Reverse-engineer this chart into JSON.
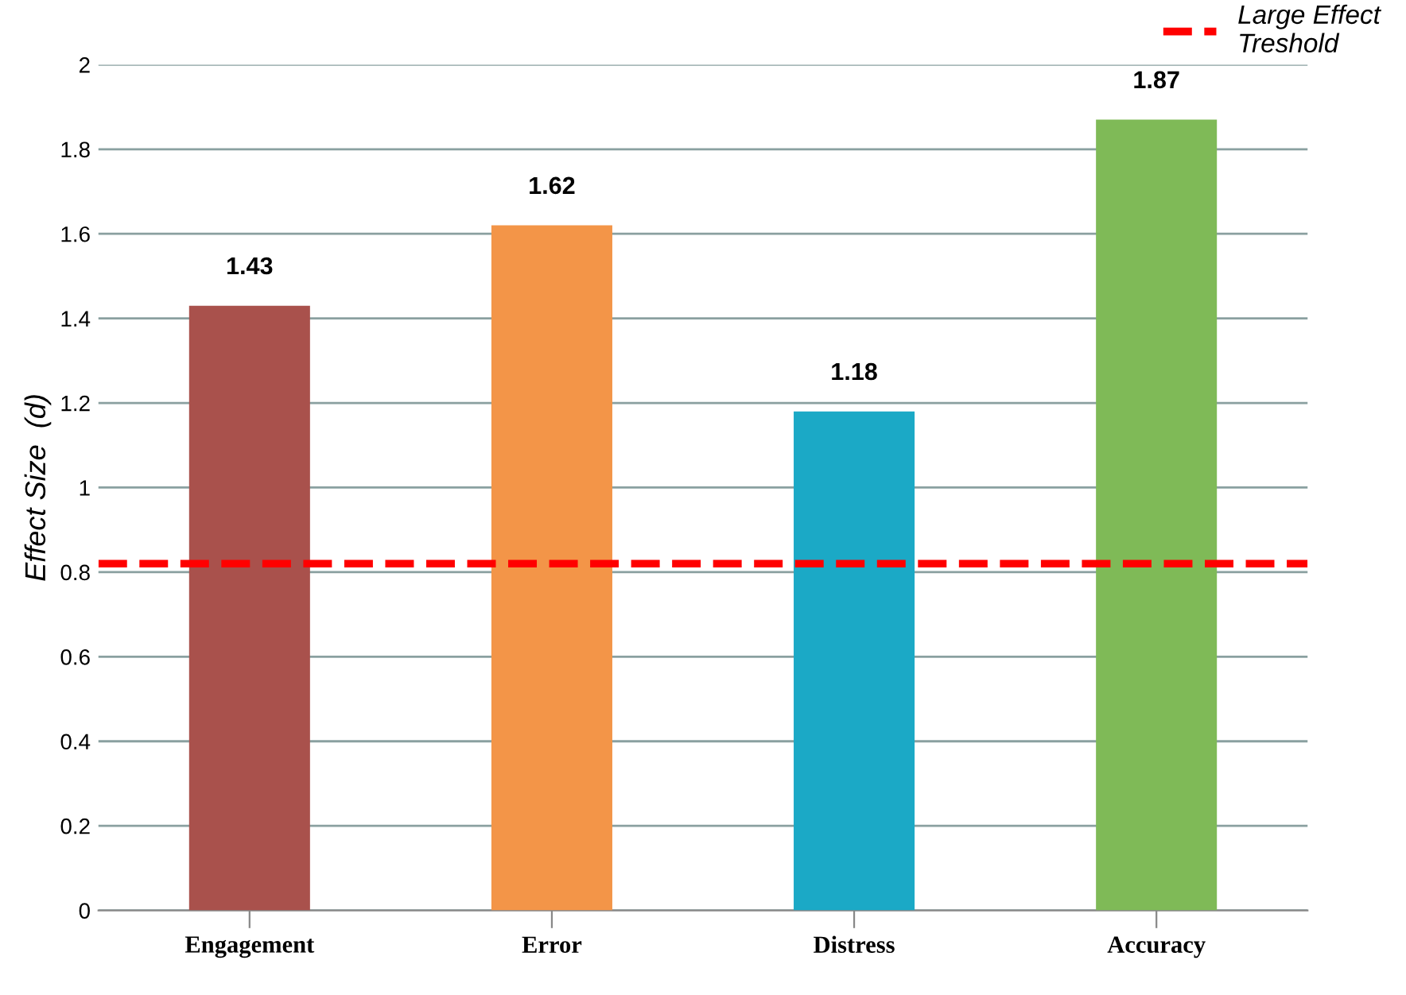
{
  "chart_data": {
    "type": "bar",
    "ylabel": "Effect Size  (d)",
    "categories": [
      "Engagement",
      "Error",
      "Distress",
      "Accuracy"
    ],
    "values": [
      1.43,
      1.62,
      1.18,
      1.87
    ],
    "colors": [
      "#a9514c",
      "#f39548",
      "#1ba9c6",
      "#7fba57"
    ],
    "ylim": [
      0,
      2
    ],
    "yticks": [
      0,
      0.2,
      0.4,
      0.6,
      0.8,
      1,
      1.2,
      1.4,
      1.6,
      1.8,
      2
    ],
    "grid": "y",
    "data_labels": true,
    "legend": "top right",
    "ref_lines": [
      {
        "axis": "y",
        "value": 0.82,
        "label": "Large Effect\nTreshold",
        "color": "#ff0000",
        "line_style": "dashed"
      }
    ]
  }
}
